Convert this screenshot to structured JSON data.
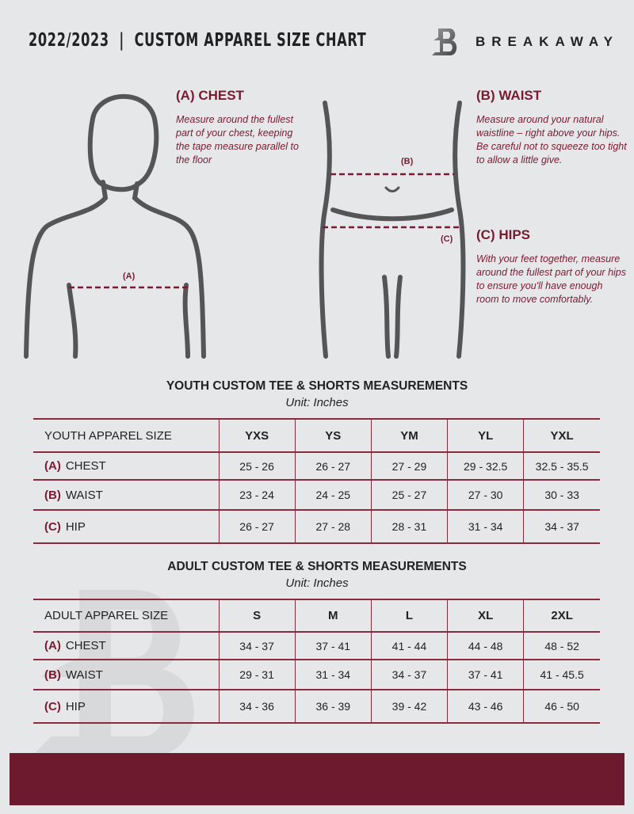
{
  "header": {
    "title": "2022/2023  |  CUSTOM APPAREL SIZE CHART",
    "brand": "BREAKAWAY",
    "logo_letter": "B"
  },
  "guide": {
    "chest": {
      "heading": "(A) CHEST",
      "text": "Measure around the fullest part of your chest, keeping the tape measure parallel to the floor",
      "marker": "(A)"
    },
    "waist": {
      "heading": "(B) WAIST",
      "text": "Measure around your natural waistline – right above your hips. Be careful not to squeeze too tight to allow a little give.",
      "marker": "(B)"
    },
    "hips": {
      "heading": "(C) HIPS",
      "text": "With your feet together, measure around the fullest part of your hips to ensure you'll have enough room to move comfortably.",
      "marker": "(C)"
    }
  },
  "youth": {
    "title": "YOUTH CUSTOM TEE & SHORTS MEASUREMENTS",
    "unit": "Unit: Inches",
    "header": [
      "YOUTH APPAREL SIZE",
      "YXS",
      "YS",
      "YM",
      "YL",
      "YXL"
    ],
    "rows": [
      {
        "code": "(A)",
        "name": "CHEST",
        "values": [
          "25 - 26",
          "26 - 27",
          "27 - 29",
          "29 - 32.5",
          "32.5 - 35.5"
        ]
      },
      {
        "code": "(B)",
        "name": "WAIST",
        "values": [
          "23 - 24",
          "24 - 25",
          "25 - 27",
          "27 - 30",
          "30 - 33"
        ]
      },
      {
        "code": "(C)",
        "name": "HIP",
        "values": [
          "26 - 27",
          "27 - 28",
          "28 - 31",
          "31 - 34",
          "34 - 37"
        ]
      }
    ]
  },
  "adult": {
    "title": "ADULT CUSTOM TEE & SHORTS MEASUREMENTS",
    "unit": "Unit: Inches",
    "header": [
      "ADULT APPAREL SIZE",
      "S",
      "M",
      "L",
      "XL",
      "2XL"
    ],
    "rows": [
      {
        "code": "(A)",
        "name": "CHEST",
        "values": [
          "34 - 37",
          "37 - 41",
          "41 - 44",
          "44 - 48",
          "48 - 52"
        ]
      },
      {
        "code": "(B)",
        "name": "WAIST",
        "values": [
          "29 - 31",
          "31 - 34",
          "34 - 37",
          "37 - 41",
          "41 - 45.5"
        ]
      },
      {
        "code": "(C)",
        "name": "HIP",
        "values": [
          "34 - 36",
          "36 - 39",
          "39 - 42",
          "43 - 46",
          "46 - 50"
        ]
      }
    ]
  },
  "colors": {
    "accent": "#7a1a30",
    "background": "#e6e7e9",
    "footer": "#6e1a2e"
  }
}
